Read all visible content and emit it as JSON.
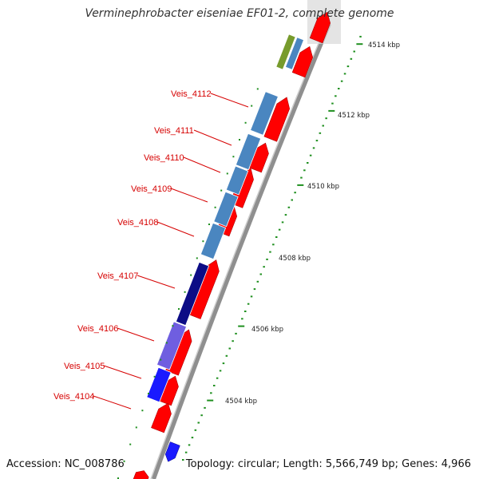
{
  "title": "Verminephrobacter eiseniae EF01-2, complete genome",
  "accession": "Accession: NC_008786",
  "topology": "Topology: circular; Length: 5,566,749 bp; Genes: 4,966",
  "colors": {
    "backbone": "#8f8f8f",
    "forward_gene": "#ff0000",
    "label": "#d60000",
    "tick": "#1f8f1f",
    "steelblue": "#4a86c0",
    "navy": "#0c0c86",
    "mediumpurple": "#6f5ee0",
    "blue": "#1a1aff",
    "olive": "#779b2c"
  },
  "scale_labels": [
    "4514 kbp",
    "4512 kbp",
    "4510 kbp",
    "4508 kbp",
    "4506 kbp",
    "4504 kbp"
  ],
  "gene_labels": [
    "Veis_4112",
    "Veis_4111",
    "Veis_4110",
    "Veis_4109",
    "Veis_4108",
    "Veis_4107",
    "Veis_4106",
    "Veis_4105",
    "Veis_4104"
  ]
}
